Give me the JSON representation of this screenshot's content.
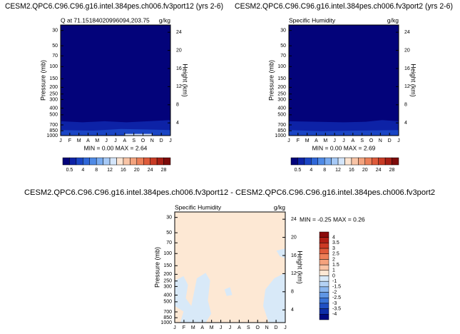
{
  "chart_data": [
    {
      "type": "contour",
      "title": "CESM2.QPC6.C96.C96.g16.intel.384pes.ch006.fv3port12 (yrs 2-6)",
      "subtitle": "Q at 71.15184020996094,203.75",
      "units": "g/kg",
      "x": [
        "J",
        "F",
        "M",
        "A",
        "M",
        "J",
        "J",
        "A",
        "S",
        "O",
        "N",
        "D",
        "J"
      ],
      "ylabel": "Pressure (mb)",
      "ylog": true,
      "ylim": [
        1000,
        25
      ],
      "yticks": [
        30,
        50,
        70,
        100,
        150,
        200,
        250,
        300,
        400,
        500,
        700,
        850,
        1000
      ],
      "y2label": "Height (km)",
      "y2lim": [
        1.2,
        25.6
      ],
      "y2ticks": [
        4,
        8,
        12,
        16,
        20,
        24
      ],
      "stats": "MIN =  0.00 MAX =  2.64",
      "colorbar": {
        "orientation": "horizontal",
        "levels": [
          0.5,
          null,
          4,
          null,
          8,
          null,
          12,
          null,
          16,
          null,
          20,
          null,
          24,
          null,
          28
        ],
        "colors": [
          "#03037a",
          "#0d22a6",
          "#1a45c4",
          "#2f67d8",
          "#4f8ae6",
          "#78abf0",
          "#a6c9f6",
          "#d4e5fa",
          "#fbe3d0",
          "#f8c4a6",
          "#f3a37e",
          "#ec8059",
          "#de5b3b",
          "#c83b25",
          "#a71f15",
          "#7d0b0a"
        ]
      }
    },
    {
      "type": "contour",
      "title": "CESM2.QPC6.C96.C96.g16.intel.384pes.ch006.fv3port2 (yrs 2-6)",
      "subtitle": "Specific Humidity",
      "units": "g/kg",
      "x": [
        "J",
        "F",
        "M",
        "A",
        "M",
        "J",
        "J",
        "A",
        "S",
        "O",
        "N",
        "D",
        "J"
      ],
      "ylabel": "Pressure (mb)",
      "ylog": true,
      "ylim": [
        1000,
        25
      ],
      "yticks": [
        30,
        50,
        70,
        100,
        150,
        200,
        250,
        300,
        400,
        500,
        700,
        850,
        1000
      ],
      "y2label": "Height (km)",
      "y2lim": [
        1.2,
        25.6
      ],
      "y2ticks": [
        4,
        8,
        12,
        16,
        20,
        24
      ],
      "stats": "MIN =  0.00 MAX =  2.69",
      "colorbar": {
        "orientation": "horizontal",
        "levels": [
          0.5,
          null,
          4,
          null,
          8,
          null,
          12,
          null,
          16,
          null,
          20,
          null,
          24,
          null,
          28
        ],
        "colors": [
          "#03037a",
          "#0d22a6",
          "#1a45c4",
          "#2f67d8",
          "#4f8ae6",
          "#78abf0",
          "#a6c9f6",
          "#d4e5fa",
          "#fbe3d0",
          "#f8c4a6",
          "#f3a37e",
          "#ec8059",
          "#de5b3b",
          "#c83b25",
          "#a71f15",
          "#7d0b0a"
        ]
      }
    },
    {
      "type": "contour",
      "title": "CESM2.QPC6.C96.C96.g16.intel.384pes.ch006.fv3port12 - CESM2.QPC6.C96.C96.g16.intel.384pes.ch006.fv3port2",
      "subtitle": "Specific Humidity",
      "units": "g/kg",
      "x": [
        "J",
        "F",
        "M",
        "A",
        "M",
        "J",
        "J",
        "A",
        "S",
        "O",
        "N",
        "D",
        "J"
      ],
      "ylabel": "Pressure (mb)",
      "ylog": true,
      "ylim": [
        1000,
        25
      ],
      "yticks": [
        30,
        50,
        70,
        100,
        150,
        200,
        250,
        300,
        400,
        500,
        700,
        850,
        1000
      ],
      "y2label": "Height (km)",
      "y2lim": [
        1.2,
        25.6
      ],
      "y2ticks": [
        4,
        8,
        12,
        16,
        20,
        24
      ],
      "stats": "MIN = -0.25 MAX =  0.26",
      "colorbar": {
        "orientation": "vertical",
        "levels": [
          4,
          3.5,
          3,
          2.5,
          2,
          1.5,
          1,
          0,
          -1,
          -1.5,
          -2,
          -2.5,
          -3,
          -3.5,
          -4
        ],
        "colors": [
          "#8b0a0a",
          "#b01e14",
          "#cc3a24",
          "#e05a3a",
          "#ee7f58",
          "#f5a27d",
          "#f9c3a5",
          "#fde8d4",
          "#d8e9f8",
          "#b4d2f4",
          "#8ab6ee",
          "#5f96e4",
          "#3a74d8",
          "#2050c4",
          "#0e2ea8",
          "#000a80"
        ]
      }
    }
  ]
}
